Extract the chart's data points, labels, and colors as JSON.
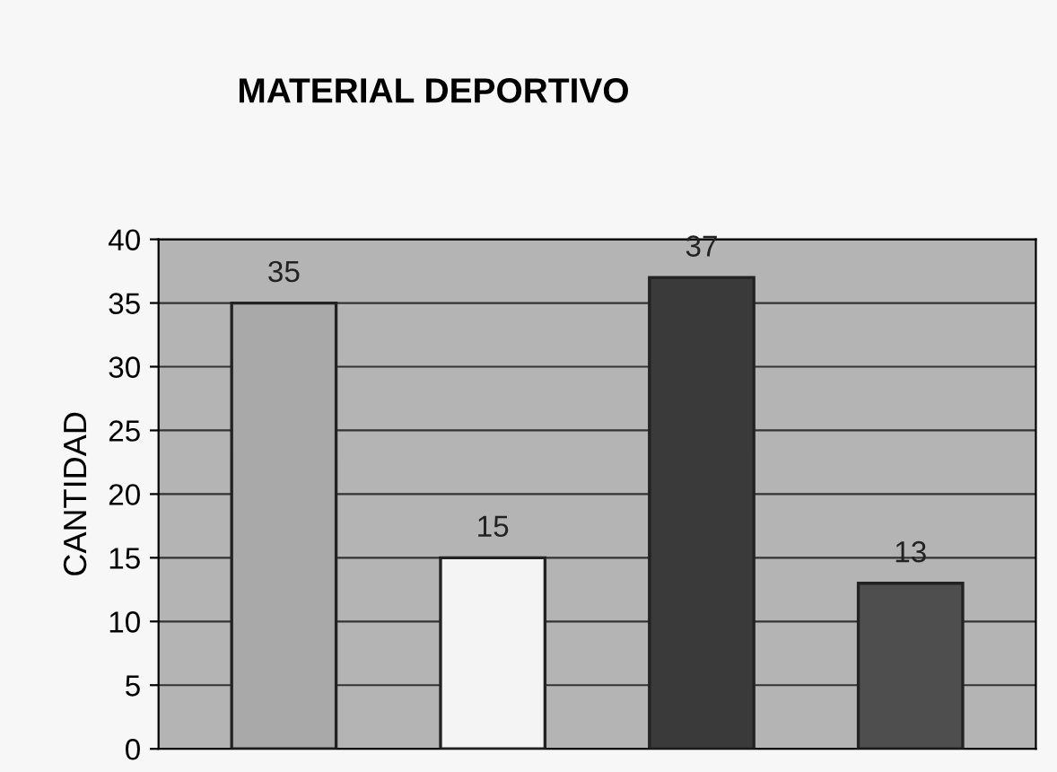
{
  "chart_data": {
    "type": "bar",
    "title": "MATERIAL DEPORTIVO",
    "ylabel": "CANTIDAD",
    "categories": [
      null,
      null,
      null,
      null
    ],
    "values": [
      35,
      15,
      37,
      13
    ],
    "colors": [
      "#a9a9a9",
      "#f4f4f4",
      "#3a3a3a",
      "#4e4e4e"
    ],
    "ylim": [
      0,
      40
    ],
    "yticks": [
      0,
      5,
      10,
      15,
      20,
      25,
      30,
      35,
      40
    ],
    "grid": "y",
    "data_labels": true
  }
}
